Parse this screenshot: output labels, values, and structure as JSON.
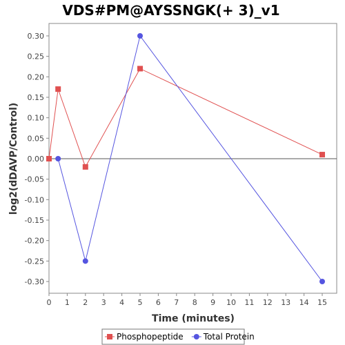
{
  "chart_data": {
    "type": "line",
    "title": "VDS#PM@AYSSNGK(+ 3)_v1",
    "xlabel": "Time (minutes)",
    "ylabel": "log2(dDAVP/Control)",
    "xlim": [
      0,
      15.8
    ],
    "ylim": [
      -0.33,
      0.33
    ],
    "x_ticks": [
      0,
      1,
      2,
      3,
      4,
      5,
      6,
      7,
      8,
      9,
      10,
      11,
      12,
      13,
      14,
      15
    ],
    "y_ticks": [
      0.3,
      0.25,
      0.2,
      0.15,
      0.1,
      0.05,
      0.0,
      -0.05,
      -0.1,
      -0.15,
      -0.2,
      -0.25,
      -0.3
    ],
    "y_tick_labels": [
      "0.30",
      "0.25",
      "0.20",
      "0.15",
      "0.10",
      "0.05",
      "0.00",
      "-0.05",
      "-0.10",
      "-0.15",
      "-0.20",
      "-0.25",
      "-0.30"
    ],
    "grid": false,
    "zero_line": true,
    "legend_position": "bottom",
    "series": [
      {
        "name": "Phosphopeptide",
        "color": "#e05050",
        "marker": "square",
        "x": [
          0,
          0.5,
          2,
          5,
          15
        ],
        "values": [
          0.0,
          0.17,
          -0.02,
          0.22,
          0.01
        ]
      },
      {
        "name": "Total Protein",
        "color": "#5555e0",
        "marker": "circle",
        "x": [
          0.5,
          2,
          5,
          15
        ],
        "values": [
          0.0,
          -0.25,
          0.3,
          -0.3
        ]
      }
    ]
  }
}
